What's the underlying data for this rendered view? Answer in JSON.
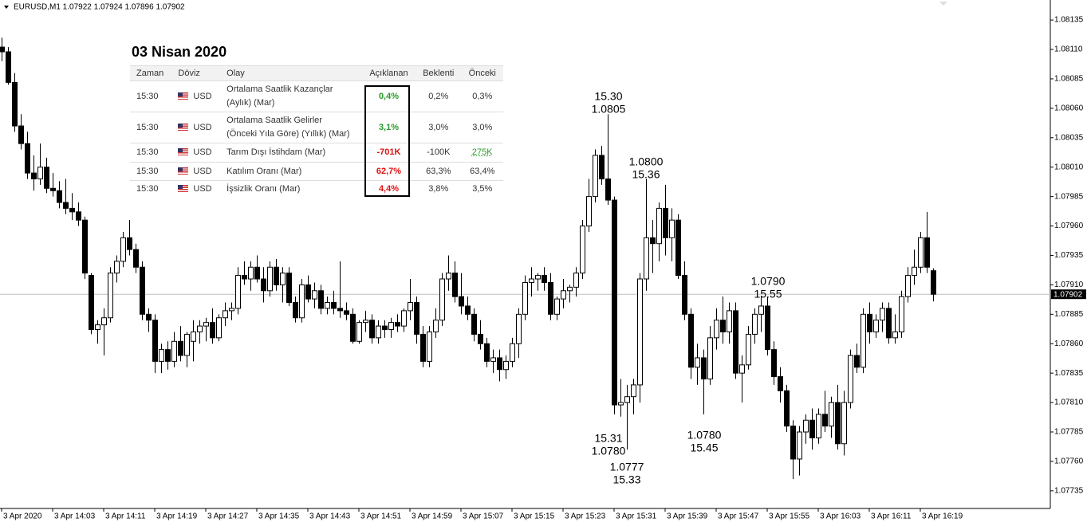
{
  "chart_data": {
    "type": "candlestick",
    "title": "EURUSD,M1  1.07922 1.07924 1.07896 1.07902",
    "up_color": "#ffffff",
    "down_color": "#000000",
    "outline_color": "#000000",
    "categories": [
      "3 Apr 2020",
      null,
      null,
      null,
      null,
      null,
      null,
      null,
      "3 Apr 14:03",
      null,
      null,
      null,
      null,
      null,
      null,
      null,
      "3 Apr 14:11",
      null,
      null,
      null,
      null,
      null,
      null,
      null,
      "3 Apr 14:19",
      null,
      null,
      null,
      null,
      null,
      null,
      null,
      "3 Apr 14:27",
      null,
      null,
      null,
      null,
      null,
      null,
      null,
      "3 Apr 14:35",
      null,
      null,
      null,
      null,
      null,
      null,
      null,
      "3 Apr 14:43",
      null,
      null,
      null,
      null,
      null,
      null,
      null,
      "3 Apr 14:51",
      null,
      null,
      null,
      null,
      null,
      null,
      null,
      "3 Apr 14:59",
      null,
      null,
      null,
      null,
      null,
      null,
      null,
      "3 Apr 15:07",
      null,
      null,
      null,
      null,
      null,
      null,
      null,
      "3 Apr 15:15",
      null,
      null,
      null,
      null,
      null,
      null,
      null,
      "3 Apr 15:23",
      null,
      null,
      null,
      null,
      null,
      null,
      null,
      "3 Apr 15:31",
      null,
      null,
      null,
      null,
      null,
      null,
      null,
      "3 Apr 15:39",
      null,
      null,
      null,
      null,
      null,
      null,
      null,
      "3 Apr 15:47",
      null,
      null,
      null,
      null,
      null,
      null,
      null,
      "3 Apr 15:55",
      null,
      null,
      null,
      null,
      null,
      null,
      null,
      "3 Apr 16:03",
      null,
      null,
      null,
      null,
      null,
      null,
      null,
      "3 Apr 16:11",
      null,
      null,
      null,
      null,
      null,
      null,
      null,
      "3 Apr 16:19",
      null,
      null
    ],
    "open": [
      1.08112,
      1.08108,
      1.08082,
      1.08045,
      1.0803,
      1.08005,
      1.08,
      1.0801,
      1.07992,
      1.0799,
      1.0798,
      1.07975,
      1.07972,
      1.07965,
      1.07918,
      1.07872,
      1.07876,
      1.07882,
      1.0792,
      1.0793,
      1.0795,
      1.0794,
      1.07925,
      1.07885,
      1.0788,
      1.07845,
      1.07855,
      1.07845,
      1.07862,
      1.0785,
      1.07862,
      1.0787,
      1.07875,
      1.07878,
      1.07865,
      1.07882,
      1.07888,
      1.0789,
      1.07918,
      1.07915,
      1.07925,
      1.07915,
      1.07905,
      1.07925,
      1.0791,
      1.0792,
      1.07895,
      1.07882,
      1.0791,
      1.07898,
      1.07905,
      1.0789,
      1.07895,
      1.0789,
      1.07888,
      1.07885,
      1.07862,
      1.07878,
      1.0788,
      1.07865,
      1.07875,
      1.07872,
      1.07878,
      1.07875,
      1.07888,
      1.07895,
      1.07868,
      1.07845,
      1.0787,
      1.0788,
      1.07915,
      1.0792,
      1.079,
      1.07892,
      1.07885,
      1.07868,
      1.0786,
      1.07845,
      1.07848,
      1.07838,
      1.07845,
      1.0786,
      1.07885,
      1.07912,
      1.07915,
      1.07918,
      1.07912,
      1.07885,
      1.07898,
      1.07905,
      1.07908,
      1.0792,
      1.0796,
      1.07985,
      1.0802,
      1.08,
      1.07982,
      1.07808,
      1.0781,
      1.07815,
      1.07825,
      1.07915,
      1.0795,
      1.07945,
      1.07975,
      1.0795,
      1.07965,
      1.07918,
      1.07885,
      1.0784,
      1.07848,
      1.0783,
      1.07865,
      1.0788,
      1.0787,
      1.07888,
      1.07835,
      1.07842,
      1.07868,
      1.07885,
      1.07892,
      1.07855,
      1.07832,
      1.0782,
      1.0779,
      1.07762,
      1.07785,
      1.07795,
      1.0778,
      1.078,
      1.0779,
      1.0781,
      1.07775,
      1.0781,
      1.0785,
      1.0784,
      1.07885,
      1.0787,
      1.0788,
      1.0789,
      1.07865,
      1.0787,
      1.079,
      1.07918,
      1.07925,
      1.0795,
      1.07922
    ],
    "high": [
      1.0812,
      1.08112,
      1.0809,
      1.08055,
      1.0804,
      1.0802,
      1.0803,
      1.08018,
      1.08005,
      1.07998,
      1.08,
      1.07988,
      1.0798,
      1.07968,
      1.0792,
      1.0788,
      1.0789,
      1.07925,
      1.07935,
      1.07955,
      1.07965,
      1.07945,
      1.0793,
      1.0789,
      1.07885,
      1.0786,
      1.07862,
      1.0787,
      1.07875,
      1.0787,
      1.0788,
      1.0788,
      1.07882,
      1.0789,
      1.07885,
      1.07895,
      1.07895,
      1.07925,
      1.0793,
      1.0793,
      1.07935,
      1.07925,
      1.0793,
      1.07932,
      1.07925,
      1.07925,
      1.079,
      1.07915,
      1.07918,
      1.07912,
      1.0791,
      1.079,
      1.07905,
      1.0793,
      1.07895,
      1.0789,
      1.0788,
      1.07888,
      1.07885,
      1.0788,
      1.0788,
      1.07882,
      1.07885,
      1.0789,
      1.07915,
      1.079,
      1.07875,
      1.07875,
      1.0789,
      1.0792,
      1.07935,
      1.0793,
      1.0792,
      1.079,
      1.0789,
      1.0788,
      1.07865,
      1.07855,
      1.07855,
      1.0785,
      1.07865,
      1.0789,
      1.07918,
      1.07925,
      1.0792,
      1.07925,
      1.0792,
      1.079,
      1.07915,
      1.0791,
      1.07925,
      1.07965,
      1.08,
      1.08025,
      1.08028,
      1.08055,
      1.07985,
      1.0783,
      1.07825,
      1.0783,
      1.0792,
      1.08,
      1.07965,
      1.0798,
      1.07995,
      1.07975,
      1.0797,
      1.0793,
      1.0789,
      1.0786,
      1.07855,
      1.07875,
      1.0789,
      1.079,
      1.07895,
      1.07895,
      1.0785,
      1.07875,
      1.0789,
      1.079,
      1.079,
      1.07862,
      1.0784,
      1.07825,
      1.07795,
      1.0779,
      1.078,
      1.07805,
      1.07805,
      1.0782,
      1.07815,
      1.07825,
      1.0782,
      1.07855,
      1.0786,
      1.0789,
      1.07895,
      1.07885,
      1.07895,
      1.07895,
      1.07885,
      1.07905,
      1.07925,
      1.0794,
      1.07955,
      1.07972,
      1.07924
    ],
    "low": [
      1.081,
      1.0808,
      1.0804,
      1.08025,
      1.08,
      1.0799,
      1.07995,
      1.07988,
      1.07985,
      1.07975,
      1.0797,
      1.07965,
      1.0796,
      1.07915,
      1.07868,
      1.0786,
      1.0785,
      1.07878,
      1.07912,
      1.07925,
      1.07935,
      1.0792,
      1.0788,
      1.0787,
      1.07835,
      1.07835,
      1.07838,
      1.0784,
      1.07845,
      1.0784,
      1.07845,
      1.0786,
      1.07862,
      1.0786,
      1.07862,
      1.07875,
      1.0788,
      1.07885,
      1.0791,
      1.07905,
      1.07912,
      1.07895,
      1.079,
      1.07905,
      1.07895,
      1.07892,
      1.07878,
      1.07878,
      1.07895,
      1.0789,
      1.07885,
      1.07885,
      1.07885,
      1.07882,
      1.0788,
      1.0786,
      1.0786,
      1.0787,
      1.0786,
      1.0786,
      1.07865,
      1.07865,
      1.0787,
      1.0787,
      1.0788,
      1.0786,
      1.0784,
      1.0784,
      1.07865,
      1.07875,
      1.07905,
      1.07895,
      1.07885,
      1.0788,
      1.07862,
      1.07855,
      1.0784,
      1.07835,
      1.07828,
      1.0783,
      1.0784,
      1.07848,
      1.0788,
      1.079,
      1.07905,
      1.07905,
      1.0788,
      1.0788,
      1.0789,
      1.07895,
      1.079,
      1.07915,
      1.07955,
      1.0798,
      1.07995,
      1.07978,
      1.078,
      1.07798,
      1.0777,
      1.078,
      1.0781,
      1.07905,
      1.0792,
      1.0793,
      1.07935,
      1.0793,
      1.07915,
      1.0788,
      1.0783,
      1.07825,
      1.078,
      1.07825,
      1.07855,
      1.0786,
      1.0786,
      1.0783,
      1.0781,
      1.07838,
      1.0786,
      1.0787,
      1.0785,
      1.07825,
      1.0781,
      1.07785,
      1.07745,
      1.07748,
      1.07775,
      1.0777,
      1.07775,
      1.07785,
      1.0778,
      1.0777,
      1.07765,
      1.07805,
      1.07835,
      1.07835,
      1.0786,
      1.07865,
      1.0787,
      1.0786,
      1.0786,
      1.07865,
      1.07895,
      1.0791,
      1.0792,
      1.0792,
      1.07896
    ],
    "close": [
      1.08108,
      1.08082,
      1.08045,
      1.0803,
      1.08005,
      1.08,
      1.0801,
      1.07992,
      1.0799,
      1.0798,
      1.07975,
      1.07972,
      1.07965,
      1.0792,
      1.07872,
      1.07876,
      1.07882,
      1.0792,
      1.0793,
      1.0795,
      1.0794,
      1.07925,
      1.07885,
      1.0788,
      1.07845,
      1.07855,
      1.07845,
      1.07862,
      1.0785,
      1.07868,
      1.0787,
      1.07875,
      1.07878,
      1.07865,
      1.07882,
      1.07888,
      1.0789,
      1.07918,
      1.07915,
      1.07925,
      1.07915,
      1.07905,
      1.07925,
      1.0791,
      1.0792,
      1.07895,
      1.07882,
      1.0791,
      1.07898,
      1.07905,
      1.0789,
      1.07895,
      1.0789,
      1.07888,
      1.07885,
      1.07862,
      1.07878,
      1.0788,
      1.07865,
      1.07875,
      1.07872,
      1.07878,
      1.07875,
      1.07888,
      1.07895,
      1.07868,
      1.07845,
      1.0787,
      1.0788,
      1.07915,
      1.0792,
      1.079,
      1.07892,
      1.07885,
      1.07868,
      1.0786,
      1.07845,
      1.07848,
      1.07838,
      1.07845,
      1.0786,
      1.07885,
      1.07912,
      1.07915,
      1.07918,
      1.07912,
      1.07885,
      1.07898,
      1.07905,
      1.07908,
      1.0792,
      1.0796,
      1.07985,
      1.0802,
      1.08,
      1.07982,
      1.07808,
      1.0781,
      1.07815,
      1.07825,
      1.07915,
      1.0795,
      1.07945,
      1.07975,
      1.0795,
      1.07965,
      1.07918,
      1.07885,
      1.0784,
      1.07848,
      1.0783,
      1.07865,
      1.0788,
      1.0787,
      1.07888,
      1.07835,
      1.07842,
      1.07868,
      1.07885,
      1.07892,
      1.07855,
      1.07832,
      1.0782,
      1.0779,
      1.07762,
      1.07785,
      1.07795,
      1.0778,
      1.078,
      1.0779,
      1.0781,
      1.07775,
      1.0781,
      1.0785,
      1.0784,
      1.07885,
      1.0787,
      1.0788,
      1.0789,
      1.07865,
      1.0787,
      1.079,
      1.07918,
      1.07925,
      1.0795,
      1.07925,
      1.07902
    ],
    "ylim": [
      1.0772,
      1.08152
    ],
    "yticks": [
      {
        "value": 1.08135,
        "label": "1.08135"
      },
      {
        "value": 1.0811,
        "label": "1.08110"
      },
      {
        "value": 1.08085,
        "label": "1.08085"
      },
      {
        "value": 1.0806,
        "label": "1.08060"
      },
      {
        "value": 1.08035,
        "label": "1.08035"
      },
      {
        "value": 1.0801,
        "label": "1.08010"
      },
      {
        "value": 1.07985,
        "label": "1.07985"
      },
      {
        "value": 1.0796,
        "label": "1.07960"
      },
      {
        "value": 1.07935,
        "label": "1.07935"
      },
      {
        "value": 1.0791,
        "label": "1.07910"
      },
      {
        "value": 1.07885,
        "label": "1.07885"
      },
      {
        "value": 1.0786,
        "label": "1.07860"
      },
      {
        "value": 1.07835,
        "label": "1.07835"
      },
      {
        "value": 1.0781,
        "label": "1.07810"
      },
      {
        "value": 1.07785,
        "label": "1.07785"
      },
      {
        "value": 1.0776,
        "label": "1.07760"
      },
      {
        "value": 1.07735,
        "label": "1.07735"
      }
    ],
    "current_price": 1.07902,
    "annotations": [
      [
        "15.30",
        "1.0805"
      ],
      [
        "1.0800",
        "15.36"
      ],
      [
        "1.0790",
        "15.55"
      ],
      [
        "15.31",
        "1.0780"
      ],
      [
        "1.0777",
        "15.33"
      ],
      [
        "1.0780",
        "15.45"
      ]
    ]
  },
  "table": {
    "title": "03 Nisan 2020",
    "columns": [
      "Zaman",
      "Döviz",
      "Olay",
      "Açıklanan",
      "Beklenti",
      "Önceki"
    ],
    "rows": [
      {
        "time": "15:30",
        "currency": "USD",
        "event": [
          "Ortalama Saatlik Kazançlar",
          "(Aylık) (Mar)"
        ],
        "actual": "0,4%",
        "actual_color": "#2a9a2a",
        "forecast": "0,2%",
        "previous": "0,3%"
      },
      {
        "time": "15:30",
        "currency": "USD",
        "event": [
          "Ortalama Saatlik Gelirler",
          "(Önceki Yıla Göre) (Yıllık) (Mar)"
        ],
        "actual": "3,1%",
        "actual_color": "#2a9a2a",
        "forecast": "3,0%",
        "previous": "3,0%"
      },
      {
        "time": "15:30",
        "currency": "USD",
        "event": [
          "Tarım Dışı İstihdam (Mar)"
        ],
        "actual": "-701K",
        "actual_color": "#e01010",
        "forecast": "-100K",
        "previous": "275K",
        "previous_color": "#2a9a2a"
      },
      {
        "time": "15:30",
        "currency": "USD",
        "event": [
          "Katılım Oranı (Mar)"
        ],
        "actual": "62,7%",
        "actual_color": "#e01010",
        "forecast": "63,3%",
        "previous": "63,4%"
      },
      {
        "time": "15:30",
        "currency": "USD",
        "event": [
          "İşsizlik Oranı (Mar)"
        ],
        "actual": "4,4%",
        "actual_color": "#e01010",
        "forecast": "3,8%",
        "previous": "3,5%"
      }
    ]
  }
}
